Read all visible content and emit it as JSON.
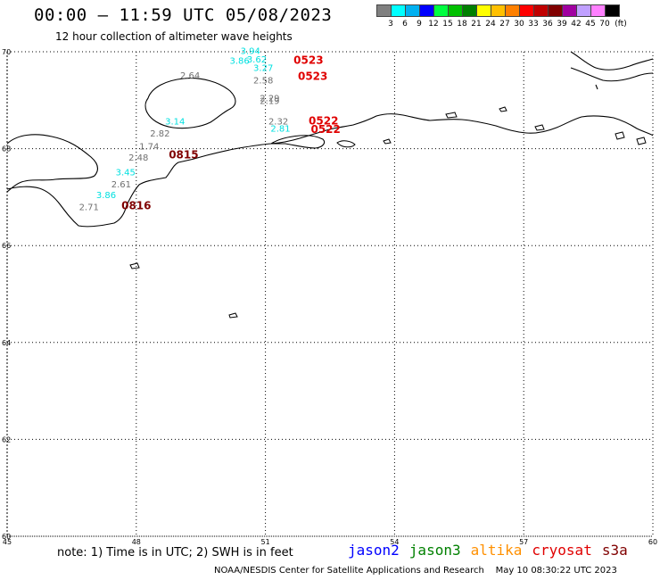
{
  "header": {
    "title": "00:00 – 11:59 UTC 05/08/2023",
    "subtitle": "12 hour collection of altimeter wave heights"
  },
  "colorbar": {
    "colors": [
      "#808080",
      "#00ffff",
      "#00b0f0",
      "#0000ff",
      "#00ff40",
      "#00c000",
      "#008000",
      "#ffff00",
      "#ffc000",
      "#ff8000",
      "#ff0000",
      "#c00000",
      "#800000",
      "#a000a0",
      "#c0a0ff",
      "#ff80ff",
      "#000000"
    ],
    "labels": [
      "3",
      "6",
      "9",
      "12",
      "15",
      "18",
      "21",
      "24",
      "27",
      "30",
      "33",
      "36",
      "39",
      "42",
      "45",
      "70",
      "(ft)"
    ]
  },
  "map": {
    "lon_ticks": [
      "45",
      "48",
      "51",
      "54",
      "57",
      "60"
    ],
    "lat_ticks": [
      "70",
      "68",
      "66",
      "64",
      "62",
      "60"
    ],
    "lon_range": [
      45,
      60
    ],
    "lat_range": [
      60,
      70
    ]
  },
  "observations": [
    {
      "text": "3.94",
      "lon": 50.65,
      "lat": 69.95,
      "color": "#00e0e0"
    },
    {
      "text": "3.62",
      "lon": 50.8,
      "lat": 69.78,
      "color": "#00e0e0"
    },
    {
      "text": "3.86",
      "lon": 50.4,
      "lat": 69.75,
      "color": "#00e0e0"
    },
    {
      "text": "3.27",
      "lon": 50.95,
      "lat": 69.6,
      "color": "#00e0e0"
    },
    {
      "text": "2.64",
      "lon": 49.25,
      "lat": 69.45,
      "color": "#707070"
    },
    {
      "text": "2.58",
      "lon": 50.95,
      "lat": 69.35,
      "color": "#707070"
    },
    {
      "text": "2.29",
      "lon": 51.1,
      "lat": 68.98,
      "color": "#707070"
    },
    {
      "text": "2.19",
      "lon": 51.1,
      "lat": 68.92,
      "color": "#707070"
    },
    {
      "text": "2.32",
      "lon": 51.3,
      "lat": 68.5,
      "color": "#707070"
    },
    {
      "text": "2.81",
      "lon": 51.35,
      "lat": 68.35,
      "color": "#00e0e0"
    },
    {
      "text": "3.14",
      "lon": 48.9,
      "lat": 68.5,
      "color": "#00e0e0"
    },
    {
      "text": "2.82",
      "lon": 48.55,
      "lat": 68.25,
      "color": "#707070"
    },
    {
      "text": "1.74",
      "lon": 48.3,
      "lat": 67.98,
      "color": "#707070"
    },
    {
      "text": "2.48",
      "lon": 48.05,
      "lat": 67.75,
      "color": "#707070"
    },
    {
      "text": "3.45",
      "lon": 47.75,
      "lat": 67.45,
      "color": "#00e0e0"
    },
    {
      "text": "2.61",
      "lon": 47.65,
      "lat": 67.2,
      "color": "#707070"
    },
    {
      "text": "3.86",
      "lon": 47.3,
      "lat": 66.98,
      "color": "#00e0e0"
    },
    {
      "text": "2.71",
      "lon": 46.9,
      "lat": 66.73,
      "color": "#707070"
    }
  ],
  "passes": [
    {
      "text": "0523",
      "lon": 52.0,
      "lat": 69.75,
      "color": "#e00000"
    },
    {
      "text": "0523",
      "lon": 52.1,
      "lat": 69.42,
      "color": "#e00000"
    },
    {
      "text": "0522",
      "lon": 52.35,
      "lat": 68.5,
      "color": "#e00000"
    },
    {
      "text": "0522",
      "lon": 52.4,
      "lat": 68.32,
      "color": "#e00000"
    },
    {
      "text": "0815",
      "lon": 49.1,
      "lat": 67.8,
      "color": "#800000"
    },
    {
      "text": "0816",
      "lon": 48.0,
      "lat": 66.75,
      "color": "#800000"
    }
  ],
  "footer": {
    "note": "note: 1) Time is in UTC; 2) SWH is in feet",
    "satellites": [
      {
        "name": "jason2",
        "color": "#0000ff"
      },
      {
        "name": "jason3",
        "color": "#008000"
      },
      {
        "name": "altika",
        "color": "#ff9000"
      },
      {
        "name": "cryosat",
        "color": "#e00000"
      },
      {
        "name": "s3a",
        "color": "#800000"
      }
    ],
    "credit": "NOAA/NESDIS Center for Satellite Applications and Research    May 10 08:30:22 UTC 2023"
  }
}
